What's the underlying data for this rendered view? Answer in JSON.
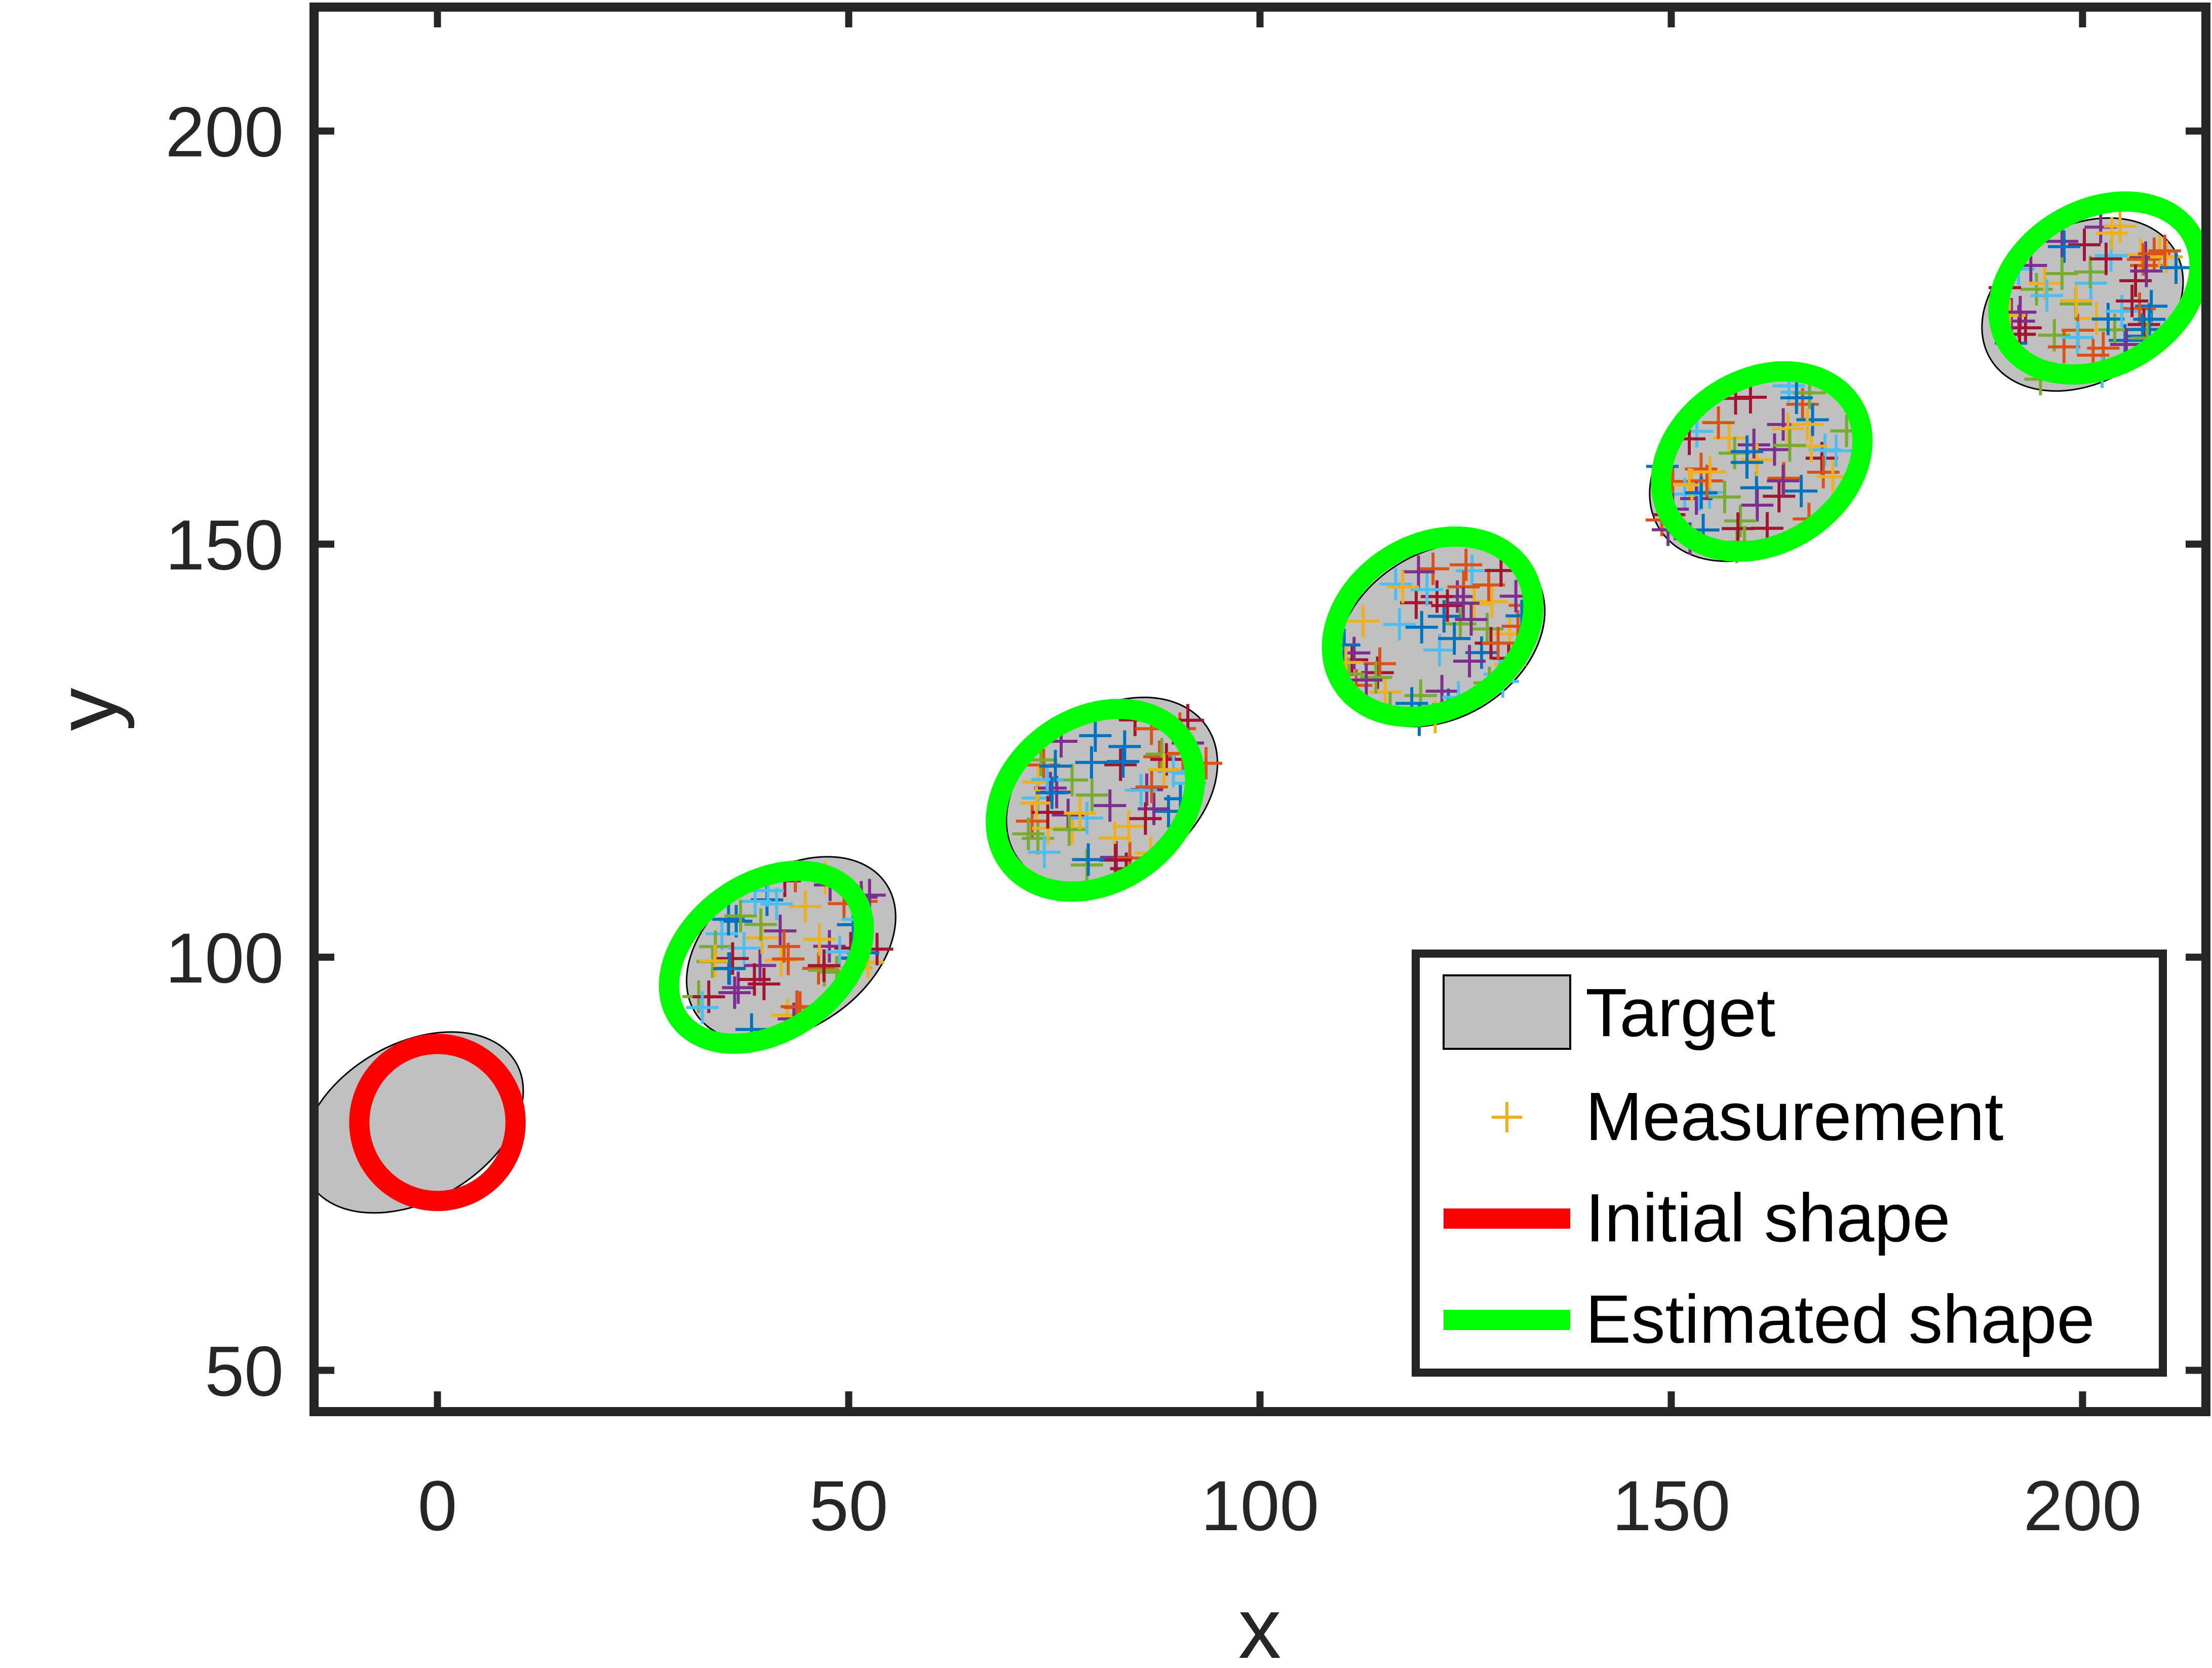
{
  "chart_data": {
    "type": "scatter",
    "xlabel": "x",
    "ylabel": "y",
    "xlim": [
      -15,
      215
    ],
    "ylim": [
      45,
      215
    ],
    "x_ticks": [
      "0",
      "50",
      "100",
      "150",
      "200"
    ],
    "y_ticks": [
      "50",
      "100",
      "150",
      "200"
    ],
    "x_tick_values": [
      0,
      50,
      100,
      150,
      200
    ],
    "y_tick_values": [
      50,
      100,
      150,
      200
    ],
    "grid": false,
    "legend_position": "bottom-right",
    "legend": {
      "target": "Target",
      "measurement": "Measurement",
      "initial": "Initial shape",
      "estimated": "Estimated shape"
    },
    "colors": {
      "target_fill": "#c0c0c0",
      "target_edge": "#000000",
      "initial": "#ff0000",
      "estimated": "#00ff00",
      "axes": "#262626",
      "measurement_legend": "#edb120",
      "measurement_palette": [
        "#0072bd",
        "#d95319",
        "#edb120",
        "#7e2f8e",
        "#77ac30",
        "#4dbeee",
        "#a2142f"
      ]
    },
    "targets": [
      {
        "cx": -3,
        "cy": 80,
        "rx": 14.5,
        "ry": 9.5,
        "angle_deg": 30
      },
      {
        "cx": 43,
        "cy": 101,
        "rx": 14,
        "ry": 9.5,
        "angle_deg": 35
      },
      {
        "cx": 82,
        "cy": 120,
        "rx": 14,
        "ry": 10,
        "angle_deg": 35
      },
      {
        "cx": 122,
        "cy": 139,
        "rx": 13.5,
        "ry": 10,
        "angle_deg": 32
      },
      {
        "cx": 160,
        "cy": 159,
        "rx": 13.5,
        "ry": 10,
        "angle_deg": 32
      },
      {
        "cx": 200,
        "cy": 179,
        "rx": 13,
        "ry": 9.5,
        "angle_deg": 30
      }
    ],
    "initial_shape": {
      "cx": 0,
      "cy": 80,
      "rx": 9.5,
      "ry": 9.5,
      "angle_deg": 0
    },
    "estimated_shapes": [
      {
        "cx": 40,
        "cy": 100,
        "rx": 13,
        "ry": 9,
        "angle_deg": 35
      },
      {
        "cx": 80,
        "cy": 119,
        "rx": 13,
        "ry": 10,
        "angle_deg": 35
      },
      {
        "cx": 121,
        "cy": 140,
        "rx": 13,
        "ry": 10,
        "angle_deg": 32
      },
      {
        "cx": 161,
        "cy": 160,
        "rx": 13,
        "ry": 10,
        "angle_deg": 32
      },
      {
        "cx": 202,
        "cy": 181,
        "rx": 13,
        "ry": 9.5,
        "angle_deg": 30
      }
    ],
    "measurement_clusters": [
      {
        "cx": 43,
        "cy": 101,
        "rx": 12,
        "ry": 8,
        "angle_deg": 35,
        "count": 60
      },
      {
        "cx": 82,
        "cy": 120,
        "rx": 12,
        "ry": 8.5,
        "angle_deg": 35,
        "count": 60
      },
      {
        "cx": 122,
        "cy": 139,
        "rx": 12,
        "ry": 8.5,
        "angle_deg": 32,
        "count": 60
      },
      {
        "cx": 160,
        "cy": 159,
        "rx": 12,
        "ry": 8.5,
        "angle_deg": 32,
        "count": 60
      },
      {
        "cx": 200,
        "cy": 179,
        "rx": 11.5,
        "ry": 8,
        "angle_deg": 30,
        "count": 60
      }
    ]
  }
}
